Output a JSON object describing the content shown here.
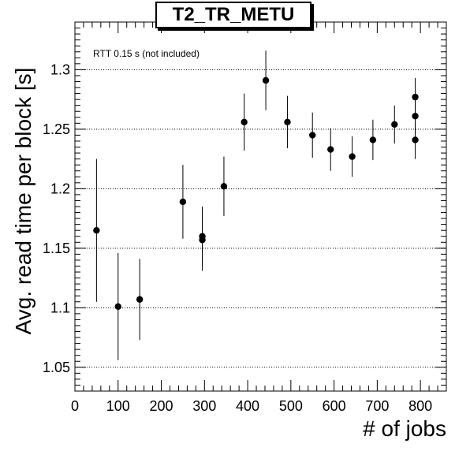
{
  "chart_data": {
    "type": "scatter",
    "title": "T2_TR_METU",
    "annotation": "RTT 0.15 s (not included)",
    "xlabel": "# of jobs",
    "ylabel": "Avg. read time per block [s]",
    "xlim": [
      0,
      860
    ],
    "ylim": [
      1.03,
      1.34
    ],
    "x_ticks": [
      0,
      100,
      200,
      300,
      400,
      500,
      600,
      700,
      800
    ],
    "y_ticks": [
      1.05,
      1.1,
      1.15,
      1.2,
      1.25,
      1.3
    ],
    "y_tick_labels": [
      "1.05",
      "1.1",
      "1.15",
      "1.2",
      "1.25",
      "1.3"
    ],
    "grid": "horizontal dotted",
    "points": [
      {
        "x": 50,
        "y": 1.165,
        "err": 0.06
      },
      {
        "x": 100,
        "y": 1.101,
        "err": 0.045
      },
      {
        "x": 150,
        "y": 1.107,
        "err": 0.034
      },
      {
        "x": 250,
        "y": 1.189,
        "err": 0.031
      },
      {
        "x": 295,
        "y": 1.157,
        "err": 0.026
      },
      {
        "x": 295,
        "y": 1.16,
        "err": 0.025
      },
      {
        "x": 345,
        "y": 1.202,
        "err": 0.025
      },
      {
        "x": 392,
        "y": 1.256,
        "err": 0.024
      },
      {
        "x": 442,
        "y": 1.291,
        "err": 0.025
      },
      {
        "x": 492,
        "y": 1.256,
        "err": 0.022
      },
      {
        "x": 550,
        "y": 1.245,
        "err": 0.019
      },
      {
        "x": 592,
        "y": 1.233,
        "err": 0.018
      },
      {
        "x": 642,
        "y": 1.227,
        "err": 0.017
      },
      {
        "x": 690,
        "y": 1.241,
        "err": 0.017
      },
      {
        "x": 740,
        "y": 1.254,
        "err": 0.016
      },
      {
        "x": 788,
        "y": 1.277,
        "err": 0.016
      },
      {
        "x": 788,
        "y": 1.261,
        "err": 0.016
      },
      {
        "x": 788,
        "y": 1.241,
        "err": 0.016
      }
    ],
    "marker_color": "#000000"
  }
}
